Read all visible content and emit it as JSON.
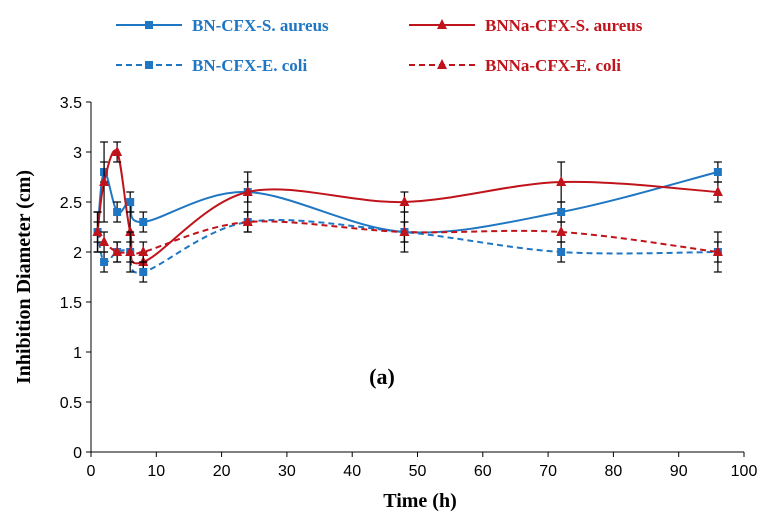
{
  "chart_data": {
    "type": "line",
    "xlabel": "Time (h)",
    "ylabel": "Inhibition Diameter  (cm)",
    "annotation": "(a)",
    "xlim": [
      0,
      100
    ],
    "ylim": [
      0,
      3.5
    ],
    "xticks": [
      0,
      10,
      20,
      30,
      40,
      50,
      60,
      70,
      80,
      90,
      100
    ],
    "yticks": [
      0,
      0.5,
      1,
      1.5,
      2,
      2.5,
      3,
      3.5
    ],
    "grid": false,
    "legend_position": "top",
    "series": [
      {
        "name": "BN-CFX-S. aureus",
        "color": "#1f77c4",
        "line_style": "solid",
        "marker": "square",
        "x": [
          1,
          2,
          4,
          6,
          8,
          24,
          48,
          72,
          96
        ],
        "y": [
          2.2,
          2.8,
          2.4,
          2.5,
          2.3,
          2.6,
          2.2,
          2.4,
          2.8
        ],
        "error": [
          0.2,
          0.1,
          0.1,
          0.1,
          0.1,
          0.1,
          0.1,
          0.1,
          0.1
        ]
      },
      {
        "name": "BNNa-CFX-S. aureus",
        "color": "#c0141c",
        "line_style": "solid",
        "marker": "triangle",
        "x": [
          1,
          2,
          4,
          6,
          8,
          24,
          48,
          72,
          96
        ],
        "y": [
          2.2,
          2.7,
          3.0,
          2.2,
          1.9,
          2.6,
          2.5,
          2.7,
          2.6
        ],
        "error": [
          0.2,
          0.4,
          0.1,
          0.2,
          0.1,
          0.2,
          0.1,
          0.2,
          0.1
        ]
      },
      {
        "name": "BN-CFX-E. coli",
        "color": "#1f77c4",
        "line_style": "dashed",
        "marker": "square",
        "x": [
          1,
          2,
          4,
          6,
          8,
          24,
          48,
          72,
          96
        ],
        "y": [
          2.2,
          1.9,
          2.0,
          2.0,
          1.8,
          2.3,
          2.2,
          2.0,
          2.0
        ],
        "error": [
          0.2,
          0.1,
          0.1,
          0.1,
          0.1,
          0.1,
          0.1,
          0.1,
          0.1
        ]
      },
      {
        "name": "BNNa-CFX-E. coli",
        "color": "#c0141c",
        "line_style": "dashed",
        "marker": "triangle",
        "x": [
          1,
          2,
          4,
          6,
          8,
          24,
          48,
          72,
          96
        ],
        "y": [
          2.2,
          2.1,
          2.0,
          2.0,
          2.0,
          2.3,
          2.2,
          2.2,
          2.0
        ],
        "error": [
          0.1,
          0.1,
          0.1,
          0.2,
          0.1,
          0.1,
          0.2,
          0.1,
          0.2
        ]
      }
    ]
  }
}
